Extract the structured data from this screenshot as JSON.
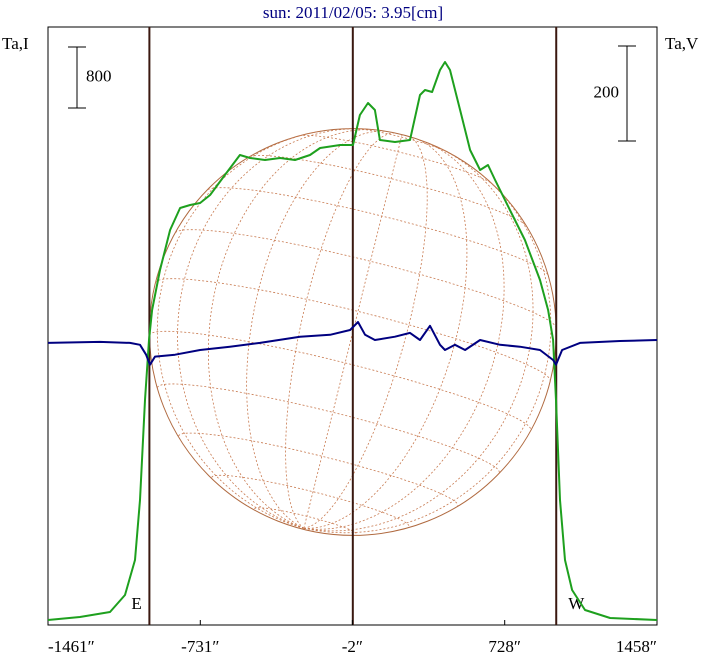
{
  "chart_data": {
    "type": "line",
    "title": "sun: 2011/02/05: 3.95[cm]",
    "ylabel": "Ta,I",
    "y2label": "Ta,V",
    "xlim": [
      -1461,
      1458
    ],
    "xticks": [
      {
        "value": -1461,
        "label": "-1461″"
      },
      {
        "value": -731,
        "label": "-731″"
      },
      {
        "value": -2,
        "label": "-2″"
      },
      {
        "value": 728,
        "label": "728″"
      },
      {
        "value": 1458,
        "label": "1458″"
      }
    ],
    "ylim": [
      0,
      7840
    ],
    "y2lim": [
      -594,
      665
    ],
    "scale_i": 800,
    "scale_v": 200,
    "disk_radius": 975,
    "east_label": "E",
    "west_label": "W",
    "series": [
      {
        "name": "I",
        "color": "#1ea01e",
        "x": [
          -1461,
          -1308,
          -1164,
          -1092,
          -1044,
          -1020,
          -996,
          -977,
          -962,
          -924,
          -876,
          -828,
          -780,
          -732,
          -684,
          -613,
          -541,
          -493,
          -421,
          -349,
          -277,
          -205,
          -157,
          -61,
          1,
          34,
          73,
          106,
          130,
          202,
          274,
          322,
          346,
          380,
          418,
          442,
          466,
          514,
          562,
          610,
          648,
          682,
          753,
          825,
          897,
          936,
          960,
          974,
          993,
          1017,
          1051,
          1113,
          1233,
          1458
        ],
        "values": [
          66,
          105,
          170,
          393,
          852,
          1639,
          2950,
          3736,
          4130,
          4654,
          5178,
          5467,
          5506,
          5532,
          5637,
          5900,
          6162,
          6122,
          6096,
          6122,
          6096,
          6162,
          6254,
          6293,
          6293,
          6686,
          6843,
          6752,
          6358,
          6332,
          6358,
          6948,
          7014,
          6988,
          7276,
          7381,
          7276,
          6752,
          6227,
          5965,
          6031,
          5834,
          5441,
          5047,
          4523,
          4130,
          3736,
          2950,
          1639,
          852,
          459,
          197,
          92,
          66
        ]
      },
      {
        "name": "V",
        "color": "#000080",
        "axis": "y2",
        "x": [
          -1461,
          -1212,
          -1068,
          -1020,
          -991,
          -972,
          -948,
          -852,
          -732,
          -589,
          -445,
          -253,
          -109,
          -13,
          25,
          59,
          106,
          202,
          274,
          322,
          370,
          418,
          442,
          490,
          538,
          610,
          706,
          801,
          897,
          960,
          974,
          1003,
          1089,
          1281,
          1458
        ],
        "values": [
          0,
          2,
          0,
          -4,
          -25,
          -46,
          -29,
          -25,
          -15,
          -8,
          0,
          13,
          17,
          27,
          44,
          17,
          6,
          13,
          21,
          6,
          36,
          -4,
          -15,
          -4,
          -15,
          6,
          -4,
          -8,
          -15,
          -36,
          -46,
          -15,
          0,
          4,
          6
        ]
      }
    ]
  }
}
